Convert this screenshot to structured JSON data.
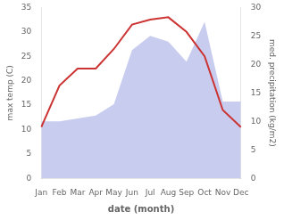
{
  "chart_data": {
    "type": "line",
    "xlabel": "date (month)",
    "ylabel": "max temp (C)",
    "y2label": "med. precipitation (kg/m2)",
    "categories": [
      "Jan",
      "Feb",
      "Mar",
      "Apr",
      "May",
      "Jun",
      "Jul",
      "Aug",
      "Sep",
      "Oct",
      "Nov",
      "Dec"
    ],
    "series": [
      {
        "type": "area",
        "color": "#c8ccee",
        "axis": "y2",
        "values": [
          10.0,
          10.0,
          10.5,
          11.0,
          13.0,
          22.5,
          25.0,
          24.0,
          20.5,
          27.5,
          13.5,
          13.5
        ]
      },
      {
        "type": "line",
        "color": "#cc3333",
        "values": [
          10.5,
          19.0,
          22.5,
          22.5,
          26.5,
          31.5,
          32.5,
          33.0,
          30.0,
          25.0,
          14.0,
          10.5
        ]
      }
    ],
    "ylim": [
      0,
      35
    ],
    "yticks": [
      0,
      5,
      10,
      15,
      20,
      25,
      30,
      35
    ],
    "y2lim": [
      0,
      30
    ],
    "y2ticks": [
      0,
      5,
      10,
      15,
      20,
      25,
      30
    ],
    "grid": false
  }
}
